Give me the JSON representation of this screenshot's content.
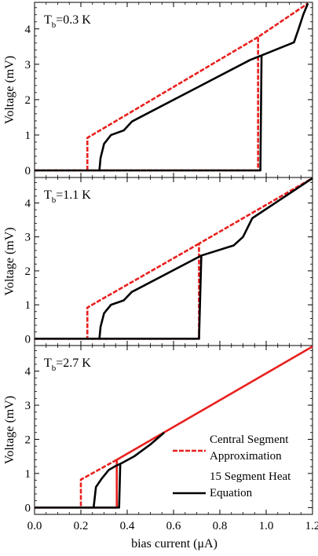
{
  "chart_data": {
    "type": "line",
    "xlabel": "bias current (μA)",
    "ylabel": "Voltage (mV)",
    "xlim": [
      0,
      1.2
    ],
    "ylim": [
      -0.2,
      4.75
    ],
    "x_ticks": [
      0.0,
      0.2,
      0.4,
      0.6,
      0.8,
      1.0,
      1.2
    ],
    "x_tick_labels": [
      "0.0",
      "0.2",
      "0.4",
      "0.6",
      "0.8",
      "1.0",
      "1.2"
    ],
    "y_ticks": [
      0,
      1,
      2,
      3,
      4
    ],
    "y_tick_labels": [
      "0",
      "1",
      "2",
      "3",
      "4"
    ],
    "colors": {
      "central": "#e8201e",
      "heat": "#000000"
    },
    "legend": {
      "placement": "bottom-right of bottom panel",
      "entries": [
        {
          "line1": "Central Segment",
          "line2": "Approximation",
          "style": "dashed",
          "color": "#e8201e"
        },
        {
          "line1": "15 Segment Heat",
          "line2": "Equation",
          "style": "solid",
          "color": "#000000"
        }
      ]
    },
    "panels": [
      {
        "label_main": "T",
        "label_sub": "b",
        "label_rest": "=0.3 K",
        "series": [
          {
            "style": "dashed",
            "color": "#e8201e",
            "points": [
              [
                0,
                0
              ],
              [
                0.965,
                0
              ],
              [
                0.965,
                3.77
              ],
              [
                1.18,
                4.72
              ]
            ]
          },
          {
            "style": "dashed",
            "color": "#e8201e",
            "points": [
              [
                0.965,
                3.77
              ],
              [
                0.228,
                0.92
              ],
              [
                0.228,
                0
              ]
            ]
          },
          {
            "style": "solid",
            "color": "#000000",
            "points": [
              [
                0,
                0
              ],
              [
                0.975,
                0
              ],
              [
                0.98,
                3.25
              ],
              [
                1.12,
                3.62
              ],
              [
                1.14,
                4.0
              ],
              [
                1.16,
                4.4
              ],
              [
                1.18,
                4.72
              ]
            ]
          },
          {
            "style": "solid",
            "color": "#000000",
            "points": [
              [
                0.98,
                3.25
              ],
              [
                0.93,
                3.12
              ],
              [
                0.44,
                1.45
              ],
              [
                0.42,
                1.38
              ],
              [
                0.385,
                1.13
              ],
              [
                0.33,
                1.0
              ],
              [
                0.3,
                0.75
              ],
              [
                0.285,
                0.35
              ],
              [
                0.28,
                0
              ]
            ]
          }
        ]
      },
      {
        "label_main": "T",
        "label_sub": "b",
        "label_rest": "=1.1 K",
        "series": [
          {
            "style": "dashed",
            "color": "#e8201e",
            "points": [
              [
                0,
                0
              ],
              [
                0.71,
                0
              ],
              [
                0.71,
                2.8
              ],
              [
                1.2,
                4.73
              ]
            ]
          },
          {
            "style": "dashed",
            "color": "#e8201e",
            "points": [
              [
                0.71,
                2.8
              ],
              [
                0.228,
                0.92
              ],
              [
                0.228,
                0
              ]
            ]
          },
          {
            "style": "solid",
            "color": "#000000",
            "points": [
              [
                0,
                0
              ],
              [
                0.71,
                0
              ],
              [
                0.72,
                2.45
              ],
              [
                0.86,
                2.75
              ],
              [
                0.9,
                3.0
              ],
              [
                0.94,
                3.55
              ],
              [
                1.2,
                4.73
              ]
            ]
          },
          {
            "style": "solid",
            "color": "#000000",
            "points": [
              [
                0.72,
                2.45
              ],
              [
                0.44,
                1.45
              ],
              [
                0.42,
                1.38
              ],
              [
                0.385,
                1.13
              ],
              [
                0.33,
                1.0
              ],
              [
                0.3,
                0.75
              ],
              [
                0.285,
                0.35
              ],
              [
                0.28,
                0
              ]
            ]
          }
        ]
      },
      {
        "label_main": "T",
        "label_sub": "b",
        "label_rest": "=2.7 K",
        "series": [
          {
            "style": "solid",
            "color": "#e8201e",
            "points": [
              [
                0,
                0
              ],
              [
                0.355,
                0
              ],
              [
                0.355,
                1.4
              ],
              [
                1.2,
                4.72
              ]
            ]
          },
          {
            "style": "dashed",
            "color": "#e8201e",
            "points": [
              [
                0.355,
                1.4
              ],
              [
                0.2,
                0.82
              ],
              [
                0.2,
                0
              ]
            ]
          },
          {
            "style": "solid",
            "color": "#000000",
            "points": [
              [
                0,
                0
              ],
              [
                0.365,
                0
              ],
              [
                0.37,
                1.28
              ],
              [
                0.43,
                1.5
              ],
              [
                0.5,
                1.85
              ],
              [
                0.56,
                2.2
              ]
            ]
          },
          {
            "style": "solid",
            "color": "#000000",
            "points": [
              [
                0.37,
                1.28
              ],
              [
                0.35,
                1.22
              ],
              [
                0.32,
                1.1
              ],
              [
                0.29,
                0.85
              ],
              [
                0.265,
                0.6
              ],
              [
                0.255,
                0
              ]
            ]
          }
        ]
      }
    ]
  }
}
